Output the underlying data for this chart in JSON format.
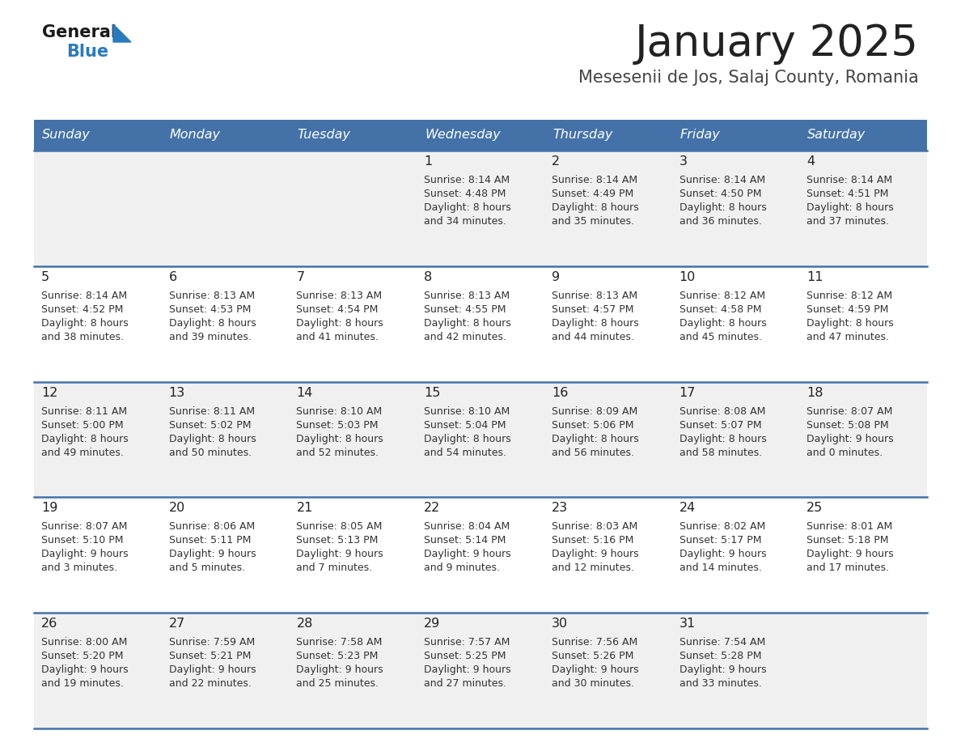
{
  "title": "January 2025",
  "subtitle": "Mesesenii de Jos, Salaj County, Romania",
  "days_of_week": [
    "Sunday",
    "Monday",
    "Tuesday",
    "Wednesday",
    "Thursday",
    "Friday",
    "Saturday"
  ],
  "header_bg": "#4472a8",
  "header_text_color": "#ffffff",
  "row_bg_odd": "#f0f0f0",
  "row_bg_even": "#ffffff",
  "separator_color": "#4472a8",
  "day_number_color": "#222222",
  "cell_text_color": "#333333",
  "title_color": "#222222",
  "subtitle_color": "#444444",
  "logo_general_color": "#1a1a1a",
  "logo_blue_color": "#2a7abf",
  "weeks": [
    [
      {
        "day": null,
        "sunrise": null,
        "sunset": null,
        "daylight_h": null,
        "daylight_m": null
      },
      {
        "day": null,
        "sunrise": null,
        "sunset": null,
        "daylight_h": null,
        "daylight_m": null
      },
      {
        "day": null,
        "sunrise": null,
        "sunset": null,
        "daylight_h": null,
        "daylight_m": null
      },
      {
        "day": 1,
        "sunrise": "8:14 AM",
        "sunset": "4:48 PM",
        "daylight_h": "8 hours",
        "daylight_m": "and 34 minutes."
      },
      {
        "day": 2,
        "sunrise": "8:14 AM",
        "sunset": "4:49 PM",
        "daylight_h": "8 hours",
        "daylight_m": "and 35 minutes."
      },
      {
        "day": 3,
        "sunrise": "8:14 AM",
        "sunset": "4:50 PM",
        "daylight_h": "8 hours",
        "daylight_m": "and 36 minutes."
      },
      {
        "day": 4,
        "sunrise": "8:14 AM",
        "sunset": "4:51 PM",
        "daylight_h": "8 hours",
        "daylight_m": "and 37 minutes."
      }
    ],
    [
      {
        "day": 5,
        "sunrise": "8:14 AM",
        "sunset": "4:52 PM",
        "daylight_h": "8 hours",
        "daylight_m": "and 38 minutes."
      },
      {
        "day": 6,
        "sunrise": "8:13 AM",
        "sunset": "4:53 PM",
        "daylight_h": "8 hours",
        "daylight_m": "and 39 minutes."
      },
      {
        "day": 7,
        "sunrise": "8:13 AM",
        "sunset": "4:54 PM",
        "daylight_h": "8 hours",
        "daylight_m": "and 41 minutes."
      },
      {
        "day": 8,
        "sunrise": "8:13 AM",
        "sunset": "4:55 PM",
        "daylight_h": "8 hours",
        "daylight_m": "and 42 minutes."
      },
      {
        "day": 9,
        "sunrise": "8:13 AM",
        "sunset": "4:57 PM",
        "daylight_h": "8 hours",
        "daylight_m": "and 44 minutes."
      },
      {
        "day": 10,
        "sunrise": "8:12 AM",
        "sunset": "4:58 PM",
        "daylight_h": "8 hours",
        "daylight_m": "and 45 minutes."
      },
      {
        "day": 11,
        "sunrise": "8:12 AM",
        "sunset": "4:59 PM",
        "daylight_h": "8 hours",
        "daylight_m": "and 47 minutes."
      }
    ],
    [
      {
        "day": 12,
        "sunrise": "8:11 AM",
        "sunset": "5:00 PM",
        "daylight_h": "8 hours",
        "daylight_m": "and 49 minutes."
      },
      {
        "day": 13,
        "sunrise": "8:11 AM",
        "sunset": "5:02 PM",
        "daylight_h": "8 hours",
        "daylight_m": "and 50 minutes."
      },
      {
        "day": 14,
        "sunrise": "8:10 AM",
        "sunset": "5:03 PM",
        "daylight_h": "8 hours",
        "daylight_m": "and 52 minutes."
      },
      {
        "day": 15,
        "sunrise": "8:10 AM",
        "sunset": "5:04 PM",
        "daylight_h": "8 hours",
        "daylight_m": "and 54 minutes."
      },
      {
        "day": 16,
        "sunrise": "8:09 AM",
        "sunset": "5:06 PM",
        "daylight_h": "8 hours",
        "daylight_m": "and 56 minutes."
      },
      {
        "day": 17,
        "sunrise": "8:08 AM",
        "sunset": "5:07 PM",
        "daylight_h": "8 hours",
        "daylight_m": "and 58 minutes."
      },
      {
        "day": 18,
        "sunrise": "8:07 AM",
        "sunset": "5:08 PM",
        "daylight_h": "9 hours",
        "daylight_m": "and 0 minutes."
      }
    ],
    [
      {
        "day": 19,
        "sunrise": "8:07 AM",
        "sunset": "5:10 PM",
        "daylight_h": "9 hours",
        "daylight_m": "and 3 minutes."
      },
      {
        "day": 20,
        "sunrise": "8:06 AM",
        "sunset": "5:11 PM",
        "daylight_h": "9 hours",
        "daylight_m": "and 5 minutes."
      },
      {
        "day": 21,
        "sunrise": "8:05 AM",
        "sunset": "5:13 PM",
        "daylight_h": "9 hours",
        "daylight_m": "and 7 minutes."
      },
      {
        "day": 22,
        "sunrise": "8:04 AM",
        "sunset": "5:14 PM",
        "daylight_h": "9 hours",
        "daylight_m": "and 9 minutes."
      },
      {
        "day": 23,
        "sunrise": "8:03 AM",
        "sunset": "5:16 PM",
        "daylight_h": "9 hours",
        "daylight_m": "and 12 minutes."
      },
      {
        "day": 24,
        "sunrise": "8:02 AM",
        "sunset": "5:17 PM",
        "daylight_h": "9 hours",
        "daylight_m": "and 14 minutes."
      },
      {
        "day": 25,
        "sunrise": "8:01 AM",
        "sunset": "5:18 PM",
        "daylight_h": "9 hours",
        "daylight_m": "and 17 minutes."
      }
    ],
    [
      {
        "day": 26,
        "sunrise": "8:00 AM",
        "sunset": "5:20 PM",
        "daylight_h": "9 hours",
        "daylight_m": "and 19 minutes."
      },
      {
        "day": 27,
        "sunrise": "7:59 AM",
        "sunset": "5:21 PM",
        "daylight_h": "9 hours",
        "daylight_m": "and 22 minutes."
      },
      {
        "day": 28,
        "sunrise": "7:58 AM",
        "sunset": "5:23 PM",
        "daylight_h": "9 hours",
        "daylight_m": "and 25 minutes."
      },
      {
        "day": 29,
        "sunrise": "7:57 AM",
        "sunset": "5:25 PM",
        "daylight_h": "9 hours",
        "daylight_m": "and 27 minutes."
      },
      {
        "day": 30,
        "sunrise": "7:56 AM",
        "sunset": "5:26 PM",
        "daylight_h": "9 hours",
        "daylight_m": "and 30 minutes."
      },
      {
        "day": 31,
        "sunrise": "7:54 AM",
        "sunset": "5:28 PM",
        "daylight_h": "9 hours",
        "daylight_m": "and 33 minutes."
      },
      {
        "day": null,
        "sunrise": null,
        "sunset": null,
        "daylight_h": null,
        "daylight_m": null
      }
    ]
  ]
}
